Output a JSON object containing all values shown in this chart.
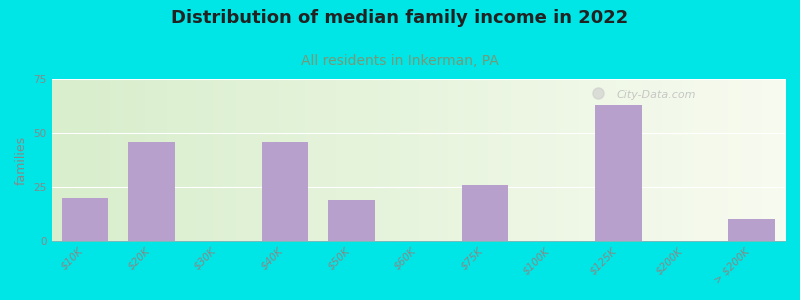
{
  "title": "Distribution of median family income in 2022",
  "subtitle": "All residents in Inkerman, PA",
  "ylabel": "families",
  "categories": [
    "$10K",
    "$20K",
    "$30K",
    "$40K",
    "$50K",
    "$60K",
    "$75K",
    "$100K",
    "$125K",
    "$200K",
    "> $200K"
  ],
  "x_positions": [
    0,
    1,
    2,
    3,
    4,
    5,
    6,
    7,
    8,
    9,
    10
  ],
  "values": [
    20,
    46,
    0,
    46,
    19,
    0,
    26,
    0,
    63,
    0,
    10
  ],
  "bar_widths": [
    0.7,
    0.7,
    0.7,
    0.7,
    0.7,
    0.7,
    0.7,
    0.7,
    0.7,
    0.7,
    0.7
  ],
  "bar_color": "#b8a0cc",
  "background_color": "#00e5e5",
  "plot_bg_left": "#d8eecc",
  "plot_bg_right": "#f8fbf0",
  "watermark": "City-Data.com",
  "ylim": [
    0,
    75
  ],
  "yticks": [
    0,
    25,
    50,
    75
  ],
  "title_fontsize": 13,
  "subtitle_fontsize": 10,
  "subtitle_color": "#779977",
  "ylabel_fontsize": 9,
  "tick_label_fontsize": 7.5,
  "tick_label_color": "#888888",
  "tick_label_style": "italic"
}
